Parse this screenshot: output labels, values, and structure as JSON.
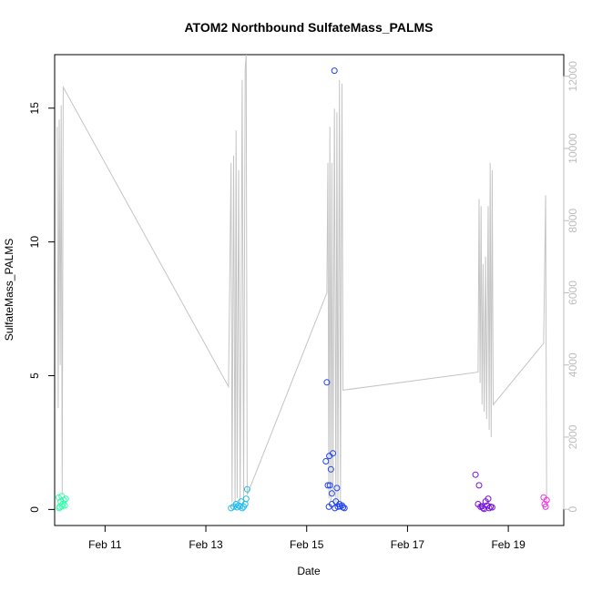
{
  "chart_data": {
    "type": "scatter",
    "title": "ATOM2 Northbound SulfateMass_PALMS",
    "xlabel": "Date",
    "ylabel": "SulfateMass_PALMS",
    "x_ticks": [
      {
        "day": 11,
        "label": "Feb 11"
      },
      {
        "day": 13,
        "label": "Feb 13"
      },
      {
        "day": 15,
        "label": "Feb 15"
      },
      {
        "day": 17,
        "label": "Feb 17"
      },
      {
        "day": 19,
        "label": "Feb 19"
      }
    ],
    "xlim": [
      10.0,
      20.1
    ],
    "y_ticks": [
      0,
      5,
      10,
      15
    ],
    "ylim": [
      -0.6,
      17.0
    ],
    "y2_ticks": [
      0,
      2000,
      4000,
      6000,
      8000,
      10000,
      12000
    ],
    "y2lim": [
      -450,
      12600
    ],
    "series": [
      {
        "values": [
          [
            10.08,
            0.45
          ],
          [
            10.1,
            0.1
          ],
          [
            10.12,
            0.3
          ],
          [
            10.14,
            0.5
          ],
          [
            10.16,
            0.2
          ],
          [
            10.18,
            0.35
          ],
          [
            10.2,
            0.15
          ],
          [
            10.22,
            0.4
          ],
          [
            10.09,
            0.05
          ],
          [
            10.15,
            0.12
          ]
        ],
        "color": "#33ffaa"
      },
      {
        "values": [
          [
            13.5,
            0.05
          ],
          [
            13.55,
            0.1
          ],
          [
            13.6,
            0.2
          ],
          [
            13.65,
            0.15
          ],
          [
            13.7,
            0.3
          ],
          [
            13.72,
            0.05
          ],
          [
            13.75,
            0.1
          ],
          [
            13.78,
            0.2
          ],
          [
            13.8,
            0.4
          ],
          [
            13.82,
            0.75
          ],
          [
            13.62,
            0.08
          ],
          [
            13.68,
            0.12
          ]
        ],
        "color": "#22bbee"
      },
      {
        "values": [
          [
            15.4,
            4.75
          ],
          [
            15.42,
            0.9
          ],
          [
            15.45,
            2.0
          ],
          [
            15.48,
            1.5
          ],
          [
            15.5,
            0.6
          ],
          [
            15.52,
            2.1
          ],
          [
            15.55,
            16.4
          ],
          [
            15.58,
            0.3
          ],
          [
            15.6,
            0.8
          ],
          [
            15.62,
            0.1
          ],
          [
            15.65,
            0.2
          ],
          [
            15.7,
            0.15
          ],
          [
            15.75,
            0.05
          ],
          [
            15.38,
            1.8
          ],
          [
            15.44,
            0.1
          ],
          [
            15.56,
            0.05
          ],
          [
            15.66,
            0.12
          ],
          [
            15.72,
            0.08
          ],
          [
            15.46,
            0.9
          ],
          [
            15.5,
            0.2
          ]
        ],
        "color": "#2244ee"
      },
      {
        "values": [
          [
            18.35,
            1.3
          ],
          [
            18.4,
            0.2
          ],
          [
            18.42,
            0.9
          ],
          [
            18.45,
            0.1
          ],
          [
            18.5,
            0.05
          ],
          [
            18.55,
            0.3
          ],
          [
            18.58,
            0.15
          ],
          [
            18.6,
            0.4
          ],
          [
            18.62,
            0.05
          ],
          [
            18.65,
            0.1
          ],
          [
            18.68,
            0.08
          ],
          [
            18.48,
            0.12
          ],
          [
            18.52,
            0.02
          ]
        ],
        "color": "#7711dd"
      },
      {
        "values": [
          [
            19.7,
            0.45
          ],
          [
            19.72,
            0.2
          ],
          [
            19.74,
            0.1
          ],
          [
            19.76,
            0.35
          ]
        ],
        "color": "#ee33dd"
      }
    ],
    "secondary_line": {
      "color": "#c4c4c4",
      "points": [
        [
          10.05,
          10600
        ],
        [
          10.07,
          2800
        ],
        [
          10.09,
          10800
        ],
        [
          10.11,
          4000
        ],
        [
          10.13,
          11200
        ],
        [
          10.15,
          400
        ],
        [
          10.17,
          11700
        ],
        [
          13.45,
          3400
        ],
        [
          13.5,
          9600
        ],
        [
          13.52,
          200
        ],
        [
          13.55,
          9800
        ],
        [
          13.58,
          100
        ],
        [
          13.6,
          10500
        ],
        [
          13.62,
          300
        ],
        [
          13.65,
          9400
        ],
        [
          13.68,
          200
        ],
        [
          13.72,
          11900
        ],
        [
          13.75,
          300
        ],
        [
          13.78,
          12200
        ],
        [
          13.8,
          12600
        ],
        [
          13.82,
          400
        ],
        [
          15.4,
          6000
        ],
        [
          15.42,
          9600
        ],
        [
          15.44,
          300
        ],
        [
          15.46,
          10600
        ],
        [
          15.48,
          200
        ],
        [
          15.5,
          9600
        ],
        [
          15.52,
          400
        ],
        [
          15.55,
          11100
        ],
        [
          15.58,
          200
        ],
        [
          15.6,
          11000
        ],
        [
          15.62,
          300
        ],
        [
          15.65,
          11900
        ],
        [
          15.67,
          200
        ],
        [
          15.7,
          11800
        ],
        [
          15.72,
          3300
        ],
        [
          18.4,
          3800
        ],
        [
          18.42,
          8600
        ],
        [
          18.44,
          3500
        ],
        [
          18.46,
          8400
        ],
        [
          18.48,
          2900
        ],
        [
          18.5,
          6800
        ],
        [
          18.52,
          2700
        ],
        [
          18.55,
          7000
        ],
        [
          18.57,
          2500
        ],
        [
          18.6,
          8400
        ],
        [
          18.62,
          2200
        ],
        [
          18.64,
          9600
        ],
        [
          18.66,
          2000
        ],
        [
          18.68,
          9400
        ],
        [
          18.7,
          2900
        ],
        [
          19.7,
          4600
        ],
        [
          19.74,
          8700
        ],
        [
          19.76,
          200
        ]
      ]
    }
  }
}
